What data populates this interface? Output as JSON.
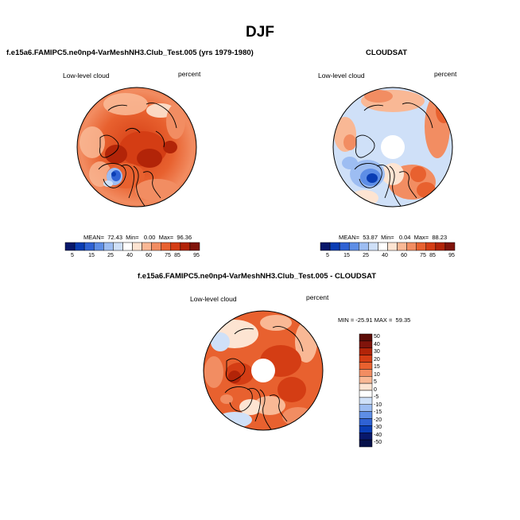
{
  "page": {
    "title": "DJF"
  },
  "colors": {
    "scale": [
      "#08186b",
      "#0a3db4",
      "#2f62d4",
      "#5e8ee6",
      "#9dbdf2",
      "#cfe0f8",
      "#ffffff",
      "#fde4d2",
      "#f9b895",
      "#f28d62",
      "#e8612f",
      "#d43d14",
      "#b22408",
      "#80140b"
    ],
    "land_outline": "#000000"
  },
  "panels": [
    {
      "id": "model",
      "title": "f.e15a6.FAMIPC5.ne0np4-VarMeshNH3.Club_Test.005 (yrs 1979-1980)",
      "left_label": "Low-level cloud",
      "right_label": "percent",
      "stats_text": "MEAN=  72.43  Min=   0.00  Max=  96.36",
      "colorbar_labels": [
        "5",
        "15",
        "25",
        "40",
        "60",
        "75",
        "85",
        "95"
      ]
    },
    {
      "id": "obs",
      "title": "CLOUDSAT",
      "left_label": "Low-level cloud",
      "right_label": "percent",
      "stats_text": "MEAN=  53.87  Min=   0.04  Max=  88.23",
      "colorbar_labels": [
        "5",
        "15",
        "25",
        "40",
        "60",
        "75",
        "85",
        "95"
      ]
    },
    {
      "id": "diff",
      "title": "f.e15a6.FAMIPC5.ne0np4-VarMeshNH3.Club_Test.005 - CLOUDSAT",
      "left_label": "Low-level cloud",
      "right_label": "percent",
      "stats_text": "MIN = -25.91 MAX =  59.35",
      "colorbar_labels": [
        "50",
        "40",
        "30",
        "20",
        "15",
        "10",
        "5",
        "0",
        "-5",
        "-10",
        "-15",
        "-20",
        "-30",
        "-40",
        "-50"
      ]
    }
  ],
  "chart_data": [
    {
      "type": "heatmap",
      "title": "f.e15a6.FAMIPC5.ne0np4-VarMeshNH3.Club_Test.005 (yrs 1979-1980)",
      "variable": "Low-level cloud",
      "units": "percent",
      "projection": "north polar stereographic",
      "levels": [
        5,
        10,
        15,
        20,
        25,
        30,
        40,
        50,
        60,
        70,
        75,
        80,
        85,
        90,
        95
      ],
      "mean": 72.43,
      "min": 0.0,
      "max": 96.36
    },
    {
      "type": "heatmap",
      "title": "CLOUDSAT",
      "variable": "Low-level cloud",
      "units": "percent",
      "projection": "north polar stereographic",
      "levels": [
        5,
        10,
        15,
        20,
        25,
        30,
        40,
        50,
        60,
        70,
        75,
        80,
        85,
        90,
        95
      ],
      "mean": 53.87,
      "min": 0.04,
      "max": 88.23
    },
    {
      "type": "heatmap",
      "title": "f.e15a6.FAMIPC5.ne0np4-VarMeshNH3.Club_Test.005 - CLOUDSAT",
      "variable": "Low-level cloud",
      "units": "percent",
      "projection": "north polar stereographic",
      "levels": [
        -50,
        -40,
        -30,
        -20,
        -15,
        -10,
        -5,
        0,
        5,
        10,
        15,
        20,
        30,
        40,
        50
      ],
      "min": -25.91,
      "max": 59.35
    }
  ]
}
